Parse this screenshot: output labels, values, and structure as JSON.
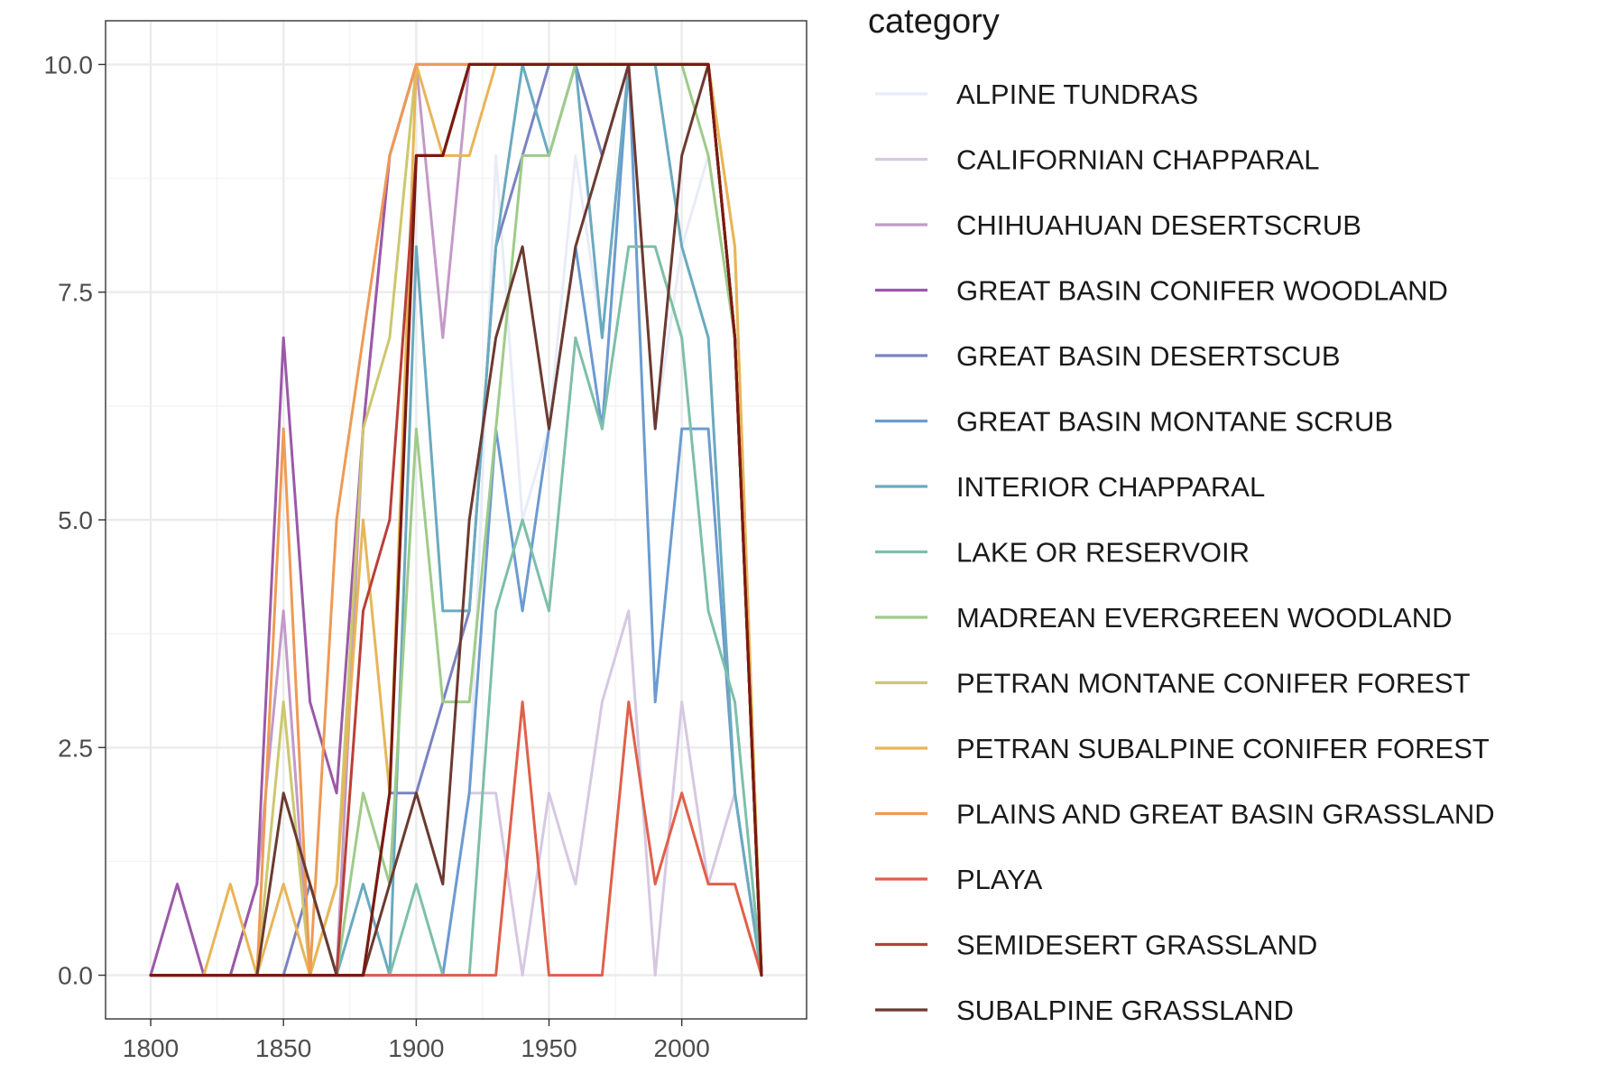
{
  "chart_data": {
    "type": "line",
    "title": "",
    "xlabel": "",
    "ylabel": "",
    "xlim": [
      1783,
      2047
    ],
    "ylim": [
      -0.48,
      10.48
    ],
    "x_ticks": [
      1800,
      1850,
      1900,
      1950,
      2000
    ],
    "x_tick_labels": [
      "1800",
      "1850",
      "1900",
      "1950",
      "2000"
    ],
    "y_ticks": [
      0,
      2.5,
      5,
      7.5,
      10
    ],
    "y_tick_labels": [
      "0.0",
      "2.5",
      "5.0",
      "7.5",
      "10.0"
    ],
    "grid": true,
    "legend": {
      "title": "category",
      "position": "right"
    },
    "series": [
      {
        "name": "ALPINE TUNDRAS",
        "color": "#e8ecf9",
        "x": [
          1800,
          1810,
          1820,
          1830,
          1840,
          1850,
          1860,
          1870,
          1880,
          1890,
          1900,
          1910,
          1920,
          1930,
          1940,
          1950,
          1960,
          1970,
          1980,
          1990,
          2000,
          2010,
          2020,
          2030
        ],
        "y": [
          0,
          0,
          0,
          0,
          0,
          0,
          0,
          0,
          0,
          0,
          0,
          0,
          2,
          9,
          5,
          6,
          9,
          7,
          10,
          6,
          8,
          9,
          7,
          0
        ]
      },
      {
        "name": "CALIFORNIAN CHAPPARAL",
        "color": "#d6c8e2",
        "x": [
          1800,
          1810,
          1820,
          1830,
          1840,
          1850,
          1860,
          1870,
          1880,
          1890,
          1900,
          1910,
          1920,
          1930,
          1940,
          1950,
          1960,
          1970,
          1980,
          1990,
          2000,
          2010,
          2020,
          2030
        ],
        "y": [
          0,
          0,
          0,
          0,
          0,
          0,
          0,
          0,
          0,
          0,
          0,
          0,
          2,
          2,
          0,
          2,
          1,
          3,
          4,
          0,
          3,
          1,
          2,
          0
        ]
      },
      {
        "name": "CHIHUAHUAN DESERTSCRUB",
        "color": "#c39ac8",
        "x": [
          1800,
          1810,
          1820,
          1830,
          1840,
          1850,
          1860,
          1870,
          1880,
          1890,
          1900,
          1910,
          1920,
          1930,
          1940,
          1950,
          1960,
          1970,
          1980,
          1990,
          2000,
          2010,
          2020,
          2030
        ],
        "y": [
          0,
          0,
          0,
          0,
          1,
          4,
          0,
          0,
          6,
          9,
          10,
          7,
          10,
          10,
          10,
          10,
          10,
          10,
          10,
          10,
          10,
          10,
          7,
          0
        ]
      },
      {
        "name": "GREAT BASIN CONIFER WOODLAND",
        "color": "#9b59a8",
        "x": [
          1800,
          1810,
          1820,
          1830,
          1840,
          1850,
          1860,
          1870,
          1880,
          1890,
          1900,
          1910,
          1920,
          1930,
          1940,
          1950,
          1960,
          1970,
          1980,
          1990,
          2000,
          2010,
          2020,
          2030
        ],
        "y": [
          0,
          1,
          0,
          0,
          1,
          7,
          3,
          2,
          6,
          9,
          10,
          10,
          10,
          10,
          10,
          10,
          10,
          10,
          10,
          10,
          10,
          10,
          7,
          0
        ]
      },
      {
        "name": "GREAT BASIN DESERTSCUB",
        "color": "#7b83c2",
        "x": [
          1800,
          1810,
          1820,
          1830,
          1840,
          1850,
          1860,
          1870,
          1880,
          1890,
          1900,
          1910,
          1920,
          1930,
          1940,
          1950,
          1960,
          1970,
          1980,
          1990,
          2000,
          2010,
          2020,
          2030
        ],
        "y": [
          0,
          0,
          0,
          0,
          0,
          0,
          1,
          0,
          0,
          2,
          2,
          3,
          4,
          8,
          9,
          10,
          10,
          9,
          10,
          10,
          10,
          10,
          7,
          0
        ]
      },
      {
        "name": "GREAT BASIN MONTANE SCRUB",
        "color": "#6c9bd0",
        "x": [
          1800,
          1810,
          1820,
          1830,
          1840,
          1850,
          1860,
          1870,
          1880,
          1890,
          1900,
          1910,
          1920,
          1930,
          1940,
          1950,
          1960,
          1970,
          1980,
          1990,
          2000,
          2010,
          2020,
          2030
        ],
        "y": [
          0,
          0,
          0,
          0,
          0,
          0,
          0,
          0,
          0,
          0,
          0,
          0,
          2,
          6,
          4,
          6,
          8,
          6,
          10,
          3,
          6,
          6,
          2,
          0
        ]
      },
      {
        "name": "INTERIOR CHAPPARAL",
        "color": "#6aaabf",
        "x": [
          1800,
          1810,
          1820,
          1830,
          1840,
          1850,
          1860,
          1870,
          1880,
          1890,
          1900,
          1910,
          1920,
          1930,
          1940,
          1950,
          1960,
          1970,
          1980,
          1990,
          2000,
          2010,
          2020,
          2030
        ],
        "y": [
          0,
          0,
          0,
          0,
          0,
          0,
          0,
          0,
          1,
          0,
          8,
          4,
          4,
          8,
          10,
          9,
          10,
          7,
          10,
          10,
          8,
          7,
          2,
          0
        ]
      },
      {
        "name": "LAKE OR RESERVOIR",
        "color": "#7dbfa8",
        "x": [
          1800,
          1810,
          1820,
          1830,
          1840,
          1850,
          1860,
          1870,
          1880,
          1890,
          1900,
          1910,
          1920,
          1930,
          1940,
          1950,
          1960,
          1970,
          1980,
          1990,
          2000,
          2010,
          2020,
          2030
        ],
        "y": [
          0,
          0,
          0,
          0,
          0,
          0,
          0,
          0,
          0,
          0,
          1,
          0,
          0,
          4,
          5,
          4,
          7,
          6,
          8,
          8,
          7,
          4,
          3,
          0
        ]
      },
      {
        "name": "MADREAN EVERGREEN WOODLAND",
        "color": "#9ecb8a",
        "x": [
          1800,
          1810,
          1820,
          1830,
          1840,
          1850,
          1860,
          1870,
          1880,
          1890,
          1900,
          1910,
          1920,
          1930,
          1940,
          1950,
          1960,
          1970,
          1980,
          1990,
          2000,
          2010,
          2020,
          2030
        ],
        "y": [
          0,
          0,
          0,
          0,
          0,
          0,
          0,
          0,
          2,
          1,
          6,
          3,
          3,
          6,
          9,
          9,
          10,
          10,
          10,
          10,
          10,
          9,
          7,
          0
        ]
      },
      {
        "name": "PETRAN MONTANE CONIFER FOREST",
        "color": "#cdc76f",
        "x": [
          1800,
          1810,
          1820,
          1830,
          1840,
          1850,
          1860,
          1870,
          1880,
          1890,
          1900,
          1910,
          1920,
          1930,
          1940,
          1950,
          1960,
          1970,
          1980,
          1990,
          2000,
          2010,
          2020,
          2030
        ],
        "y": [
          0,
          0,
          0,
          0,
          0,
          3,
          0,
          1,
          6,
          7,
          10,
          10,
          10,
          10,
          10,
          10,
          10,
          10,
          10,
          10,
          10,
          10,
          8,
          0
        ]
      },
      {
        "name": "PETRAN SUBALPINE CONIFER FOREST",
        "color": "#e8b559",
        "x": [
          1800,
          1810,
          1820,
          1830,
          1840,
          1850,
          1860,
          1870,
          1880,
          1890,
          1900,
          1910,
          1920,
          1930,
          1940,
          1950,
          1960,
          1970,
          1980,
          1990,
          2000,
          2010,
          2020,
          2030
        ],
        "y": [
          0,
          0,
          0,
          1,
          0,
          1,
          0,
          1,
          5,
          2,
          10,
          9,
          9,
          10,
          10,
          10,
          10,
          10,
          10,
          10,
          10,
          10,
          8,
          0
        ]
      },
      {
        "name": "PLAINS AND GREAT BASIN GRASSLAND",
        "color": "#ef9a55",
        "x": [
          1800,
          1810,
          1820,
          1830,
          1840,
          1850,
          1860,
          1870,
          1880,
          1890,
          1900,
          1910,
          1920,
          1930,
          1940,
          1950,
          1960,
          1970,
          1980,
          1990,
          2000,
          2010,
          2020,
          2030
        ],
        "y": [
          0,
          0,
          0,
          0,
          0,
          6,
          0,
          5,
          7,
          9,
          10,
          10,
          10,
          10,
          10,
          10,
          10,
          10,
          10,
          10,
          10,
          10,
          7,
          0
        ]
      },
      {
        "name": "PLAYA",
        "color": "#e0604a",
        "x": [
          1800,
          1810,
          1820,
          1830,
          1840,
          1850,
          1860,
          1870,
          1880,
          1890,
          1900,
          1910,
          1920,
          1930,
          1940,
          1950,
          1960,
          1970,
          1980,
          1990,
          2000,
          2010,
          2020,
          2030
        ],
        "y": [
          0,
          0,
          0,
          0,
          0,
          0,
          0,
          0,
          0,
          0,
          0,
          0,
          0,
          0,
          3,
          0,
          0,
          0,
          3,
          1,
          2,
          1,
          1,
          0
        ]
      },
      {
        "name": "SEMIDESERT GRASSLAND",
        "color": "#b8403a",
        "x": [
          1800,
          1810,
          1820,
          1830,
          1840,
          1850,
          1860,
          1870,
          1880,
          1890,
          1900,
          1910,
          1920,
          1930,
          1940,
          1950,
          1960,
          1970,
          1980,
          1990,
          2000,
          2010,
          2020,
          2030
        ],
        "y": [
          0,
          0,
          0,
          0,
          0,
          0,
          0,
          0,
          4,
          5,
          9,
          9,
          10,
          10,
          10,
          10,
          10,
          10,
          10,
          10,
          10,
          10,
          7,
          0
        ]
      },
      {
        "name": "SUBALPINE GRASSLAND",
        "color": "#6b3a30",
        "x": [
          1800,
          1810,
          1820,
          1830,
          1840,
          1850,
          1860,
          1870,
          1880,
          1890,
          1900,
          1910,
          1920,
          1930,
          1940,
          1950,
          1960,
          1970,
          1980,
          1990,
          2000,
          2010,
          2020,
          2030
        ],
        "y": [
          0,
          0,
          0,
          0,
          0,
          2,
          1,
          0,
          0,
          1,
          2,
          1,
          5,
          7,
          8,
          6,
          8,
          9,
          10,
          6,
          9,
          10,
          7,
          0
        ]
      }
    ],
    "overlay": {
      "color": "#7a1a10",
      "x": [
        1800,
        1810,
        1820,
        1830,
        1840,
        1850,
        1860,
        1870,
        1880,
        1890,
        1900,
        1910,
        1920,
        1930,
        1940,
        1950,
        1960,
        1970,
        1980,
        1990,
        2000,
        2010,
        2020,
        2030
      ],
      "y": [
        0,
        0,
        0,
        0,
        0,
        0,
        0,
        0,
        0,
        2,
        9,
        9,
        10,
        10,
        10,
        10,
        10,
        10,
        10,
        10,
        10,
        10,
        7,
        0
      ]
    }
  }
}
